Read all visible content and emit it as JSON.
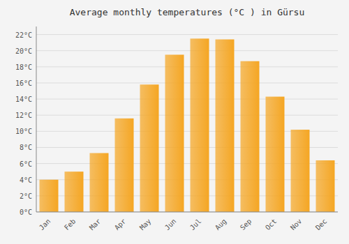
{
  "chart_data": {
    "type": "bar",
    "title": "Average monthly temperatures (°C ) in Gürsu",
    "categories": [
      "Jan",
      "Feb",
      "Mar",
      "Apr",
      "May",
      "Jun",
      "Jul",
      "Aug",
      "Sep",
      "Oct",
      "Nov",
      "Dec"
    ],
    "values": [
      4.0,
      5.0,
      7.3,
      11.6,
      15.8,
      19.5,
      21.5,
      21.4,
      18.7,
      14.3,
      10.2,
      6.4
    ],
    "color": "#F5A623",
    "ylim": [
      0,
      23
    ],
    "yticks": [
      {
        "value": 0,
        "label": "0°C"
      },
      {
        "value": 2,
        "label": "2°C"
      },
      {
        "value": 4,
        "label": "4°C"
      },
      {
        "value": 6,
        "label": "6°C"
      },
      {
        "value": 8,
        "label": "8°C"
      },
      {
        "value": 10,
        "label": "10°C"
      },
      {
        "value": 12,
        "label": "12°C"
      },
      {
        "value": 14,
        "label": "14°C"
      },
      {
        "value": 16,
        "label": "16°C"
      },
      {
        "value": 18,
        "label": "18°C"
      },
      {
        "value": 20,
        "label": "20°C"
      },
      {
        "value": 22,
        "label": "22°C"
      }
    ],
    "grid": true
  }
}
